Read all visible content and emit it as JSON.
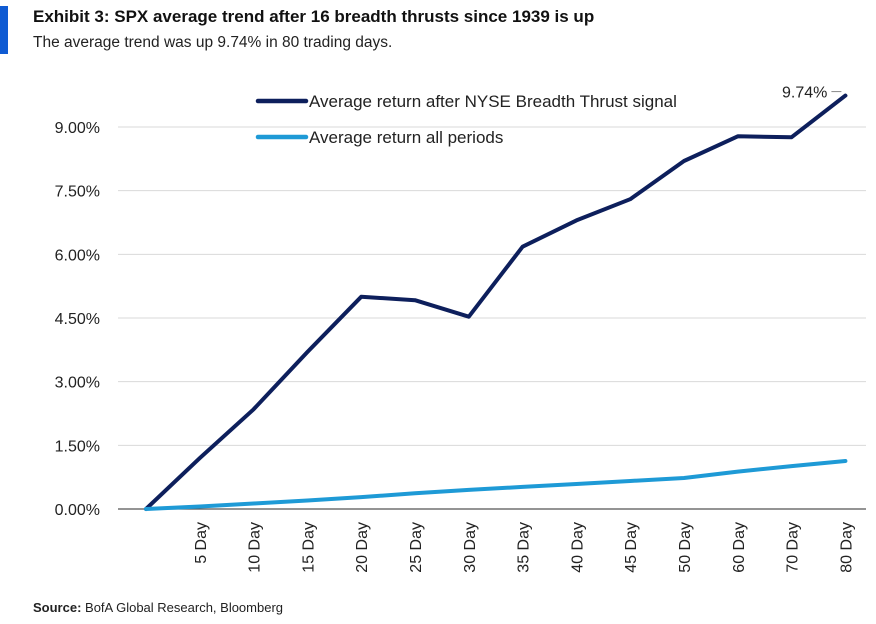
{
  "header": {
    "title": "Exhibit 3: SPX average trend after 16 breadth thrusts since 1939 is up",
    "subtitle": "The average trend was up 9.74% in 80 trading days."
  },
  "source": {
    "label": "Source:",
    "text": " BofA Global Research, Bloomberg"
  },
  "colors": {
    "accent": "#0f5bd3",
    "series_dark": "#0d1f5c",
    "series_light": "#1e9ad6",
    "grid": "#d9d9d9"
  },
  "chart_data": {
    "type": "line",
    "categories": [
      "",
      "5 Day",
      "10 Day",
      "15 Day",
      "20 Day",
      "25 Day",
      "30 Day",
      "35 Day",
      "40 Day",
      "45 Day",
      "50 Day",
      "60 Day",
      "70 Day",
      "80 Day"
    ],
    "series": [
      {
        "name": "Average return after NYSE Breadth Thrust signal",
        "color": "#0d1f5c",
        "values": [
          0.0,
          1.2,
          2.35,
          3.7,
          5.0,
          4.92,
          4.53,
          6.18,
          6.8,
          7.3,
          8.2,
          8.78,
          8.76,
          9.74
        ]
      },
      {
        "name": "Average return all periods",
        "color": "#1e9ad6",
        "values": [
          0.0,
          0.06,
          0.13,
          0.2,
          0.28,
          0.37,
          0.45,
          0.52,
          0.59,
          0.66,
          0.73,
          0.88,
          1.01,
          1.13
        ]
      }
    ],
    "yticks": [
      "0.00%",
      "1.50%",
      "3.00%",
      "4.50%",
      "6.00%",
      "7.50%",
      "9.00%"
    ],
    "ylim": [
      0,
      10.5
    ],
    "grid": true,
    "legend_position": "top-center",
    "annotation": {
      "text": "9.74%",
      "series": 0,
      "index": 13
    }
  }
}
